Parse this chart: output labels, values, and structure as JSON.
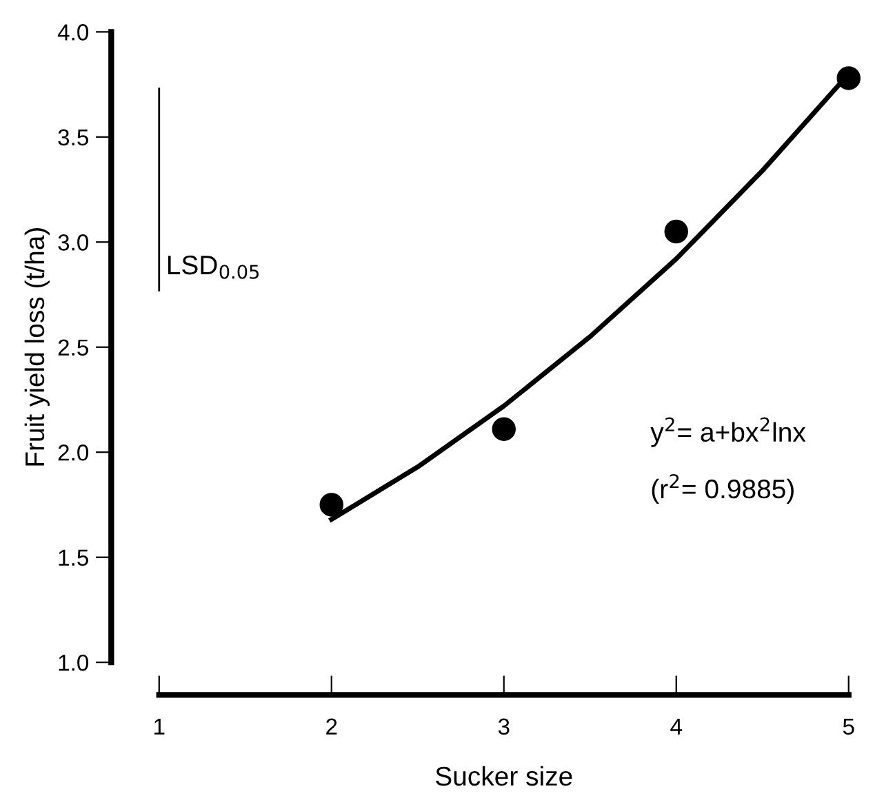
{
  "chart_data": {
    "type": "scatter",
    "xlabel": "Sucker size",
    "ylabel": "Fruit yield loss (t/ha)",
    "xlim": [
      1,
      5
    ],
    "ylim": [
      1,
      4
    ],
    "xticks": [
      1,
      2,
      3,
      4,
      5
    ],
    "yticks": [
      {
        "value": 1,
        "label": "1.0"
      },
      {
        "value": 1.5,
        "label": "1.5"
      },
      {
        "value": 2,
        "label": "2.0"
      },
      {
        "value": 2.5,
        "label": "2.5"
      },
      {
        "value": 3,
        "label": "3.0"
      },
      {
        "value": 3.5,
        "label": "3.5"
      },
      {
        "value": 4,
        "label": "4.0"
      }
    ],
    "grid": false,
    "legend": false,
    "series": [
      {
        "color": "#000000",
        "marker": "circle",
        "x": [
          2,
          3,
          4,
          5
        ],
        "values": [
          1.75,
          2.11,
          3.05,
          3.78
        ]
      },
      {
        "type": "line",
        "color": "#000000",
        "marker": "none",
        "line_style": "solid",
        "x": [
          2,
          2.5,
          3,
          3.5,
          4,
          4.5,
          5
        ],
        "values": [
          1.68,
          1.93,
          2.22,
          2.55,
          2.92,
          3.34,
          3.8
        ]
      },
      {
        "type": "line",
        "name": "LSD$_{0.05}$",
        "color": "#000000",
        "marker": "none",
        "line_style": "solid",
        "x": [
          1,
          1
        ],
        "values": [
          2.77,
          3.73
        ]
      }
    ],
    "annotations": [
      "y$^{2}$= a+bx$^{2}$lnx",
      "(r$^{2}$= 0.9885)"
    ]
  }
}
